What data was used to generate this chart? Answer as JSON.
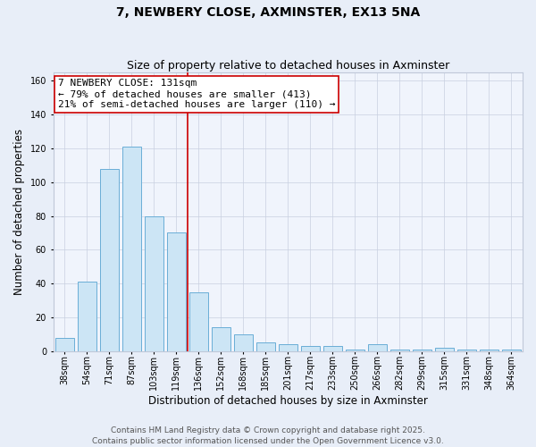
{
  "title": "7, NEWBERY CLOSE, AXMINSTER, EX13 5NA",
  "subtitle": "Size of property relative to detached houses in Axminster",
  "xlabel": "Distribution of detached houses by size in Axminster",
  "ylabel": "Number of detached properties",
  "categories": [
    "38sqm",
    "54sqm",
    "71sqm",
    "87sqm",
    "103sqm",
    "119sqm",
    "136sqm",
    "152sqm",
    "168sqm",
    "185sqm",
    "201sqm",
    "217sqm",
    "233sqm",
    "250sqm",
    "266sqm",
    "282sqm",
    "299sqm",
    "315sqm",
    "331sqm",
    "348sqm",
    "364sqm"
  ],
  "values": [
    8,
    41,
    108,
    121,
    80,
    70,
    35,
    14,
    10,
    5,
    4,
    3,
    3,
    1,
    4,
    1,
    1,
    2,
    1,
    1,
    1
  ],
  "bar_color": "#cce5f5",
  "bar_edge_color": "#6aaed6",
  "vline_color": "#cc0000",
  "annotation_line1": "7 NEWBERY CLOSE: 131sqm",
  "annotation_line2": "← 79% of detached houses are smaller (413)",
  "annotation_line3": "21% of semi-detached houses are larger (110) →",
  "annotation_box_facecolor": "#ffffff",
  "annotation_box_edgecolor": "#cc0000",
  "ylim": [
    0,
    165
  ],
  "yticks": [
    0,
    20,
    40,
    60,
    80,
    100,
    120,
    140,
    160
  ],
  "footer_line1": "Contains HM Land Registry data © Crown copyright and database right 2025.",
  "footer_line2": "Contains public sector information licensed under the Open Government Licence v3.0.",
  "bg_color": "#e8eef8",
  "plot_bg_color": "#f0f4fc",
  "title_fontsize": 10,
  "subtitle_fontsize": 9,
  "axis_label_fontsize": 8.5,
  "tick_fontsize": 7,
  "footer_fontsize": 6.5,
  "annot_fontsize": 8
}
